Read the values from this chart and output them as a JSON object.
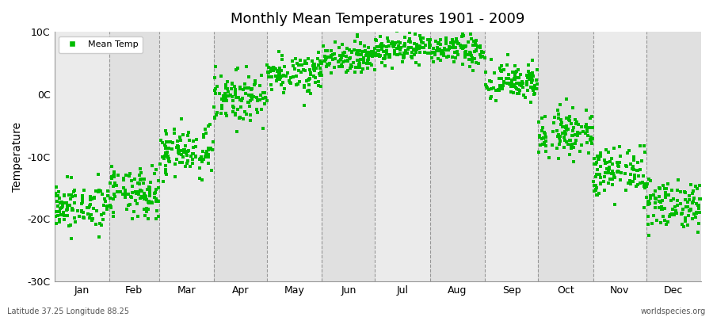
{
  "title": "Monthly Mean Temperatures 1901 - 2009",
  "ylabel": "Temperature",
  "ylim": [
    -30,
    10
  ],
  "yticks": [
    -30,
    -20,
    -10,
    0,
    10
  ],
  "ytick_labels": [
    "-30C",
    "-20C",
    "-10C",
    "0C",
    "10C"
  ],
  "months": [
    "Jan",
    "Feb",
    "Mar",
    "Apr",
    "May",
    "Jun",
    "Jul",
    "Aug",
    "Sep",
    "Oct",
    "Nov",
    "Dec"
  ],
  "month_days": [
    31,
    28,
    31,
    30,
    31,
    30,
    31,
    31,
    30,
    31,
    30,
    31
  ],
  "marker_color": "#00BB00",
  "marker": "s",
  "marker_size": 2.5,
  "background_color": "#EBEBEB",
  "background_color_alt": "#E0E0E0",
  "grid_color": "#777777",
  "legend_label": "Mean Temp",
  "footer_left": "Latitude 37.25 Longitude 88.25",
  "footer_right": "worldspecies.org",
  "monthly_means": [
    -18.5,
    -16.5,
    -9.5,
    -1.0,
    3.0,
    5.5,
    7.0,
    6.5,
    1.5,
    -6.5,
    -13.0,
    -18.0
  ],
  "monthly_stds": [
    1.8,
    2.0,
    2.0,
    2.0,
    1.5,
    1.2,
    1.2,
    1.2,
    1.5,
    1.8,
    2.0,
    2.0
  ],
  "n_years": 109,
  "start_year": 1901,
  "end_year": 2009,
  "seed": 42,
  "warming_trend": 0.008
}
